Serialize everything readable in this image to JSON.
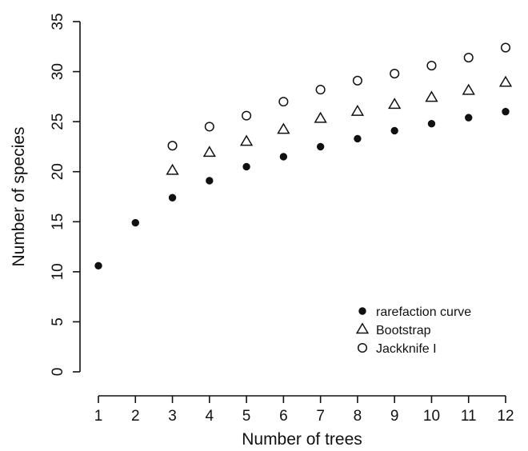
{
  "chart_data": {
    "type": "scatter",
    "title": "",
    "xlabel": "Number of trees",
    "ylabel": "Number of species",
    "x": [
      1,
      2,
      3,
      4,
      5,
      6,
      7,
      8,
      9,
      10,
      11,
      12
    ],
    "xticks": [
      1,
      2,
      3,
      4,
      5,
      6,
      7,
      8,
      9,
      10,
      11,
      12
    ],
    "yticks": [
      0,
      5,
      10,
      15,
      20,
      25,
      30,
      35
    ],
    "xlim": [
      0.6,
      12.4
    ],
    "ylim": [
      0,
      35
    ],
    "grid": false,
    "legend_position": "bottom-right",
    "series": [
      {
        "name": "rarefaction curve",
        "marker": "filled-circle",
        "x": [
          1,
          2,
          3,
          4,
          5,
          6,
          7,
          8,
          9,
          10,
          11,
          12
        ],
        "values": [
          10.6,
          14.9,
          17.4,
          19.1,
          20.5,
          21.5,
          22.5,
          23.3,
          24.1,
          24.8,
          25.4,
          26.0
        ]
      },
      {
        "name": "Bootstrap",
        "marker": "open-triangle",
        "x": [
          3,
          4,
          5,
          6,
          7,
          8,
          9,
          10,
          11,
          12
        ],
        "values": [
          20.1,
          21.9,
          23.0,
          24.2,
          25.3,
          26.0,
          26.7,
          27.4,
          28.1,
          28.9
        ]
      },
      {
        "name": "Jackknife I",
        "marker": "open-circle",
        "x": [
          3,
          4,
          5,
          6,
          7,
          8,
          9,
          10,
          11,
          12
        ],
        "values": [
          22.6,
          24.5,
          25.6,
          27.0,
          28.2,
          29.1,
          29.8,
          30.6,
          31.4,
          32.4
        ]
      }
    ]
  }
}
